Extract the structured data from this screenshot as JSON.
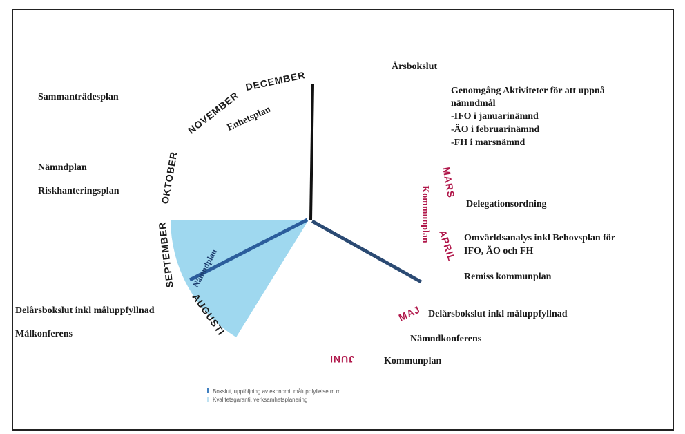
{
  "wheel": {
    "months": [
      "DECEMBER",
      "NOVEMBER",
      "OKTOBER",
      "SEPTEMBER",
      "AUGUSTI",
      "MARS",
      "APRIL",
      "MAJ",
      "JUNI"
    ],
    "plans": [
      "Enhetsplan",
      "Kommunplan",
      "Nämndplan"
    ]
  },
  "left_notes": [
    "Sammanträdesplan",
    "Nämndplan",
    "Riskhanteringsplan",
    "Delårsbokslut inkl måluppfyllnad",
    "Målkonferens"
  ],
  "right_notes": [
    "Årsbokslut",
    "Genomgång Aktiviteter för att uppnå",
    "nämndmål",
    "-IFO i januarinämnd",
    "-ÄO i februarinämnd",
    "-FH i marsnämnd",
    "Delegationsordning",
    "Omvärldsanalys inkl Behovsplan för",
    "IFO, ÄO och FH",
    "Remiss kommunplan",
    "Delårsbokslut inkl måluppfyllnad",
    "Nämndkonferens",
    "Kommunplan"
  ],
  "legend": [
    "Bokslut, uppföljning av ekonomi, måluppfyllelse m.m",
    "Kvalitetsgaranti, verksamhetsplanering"
  ]
}
